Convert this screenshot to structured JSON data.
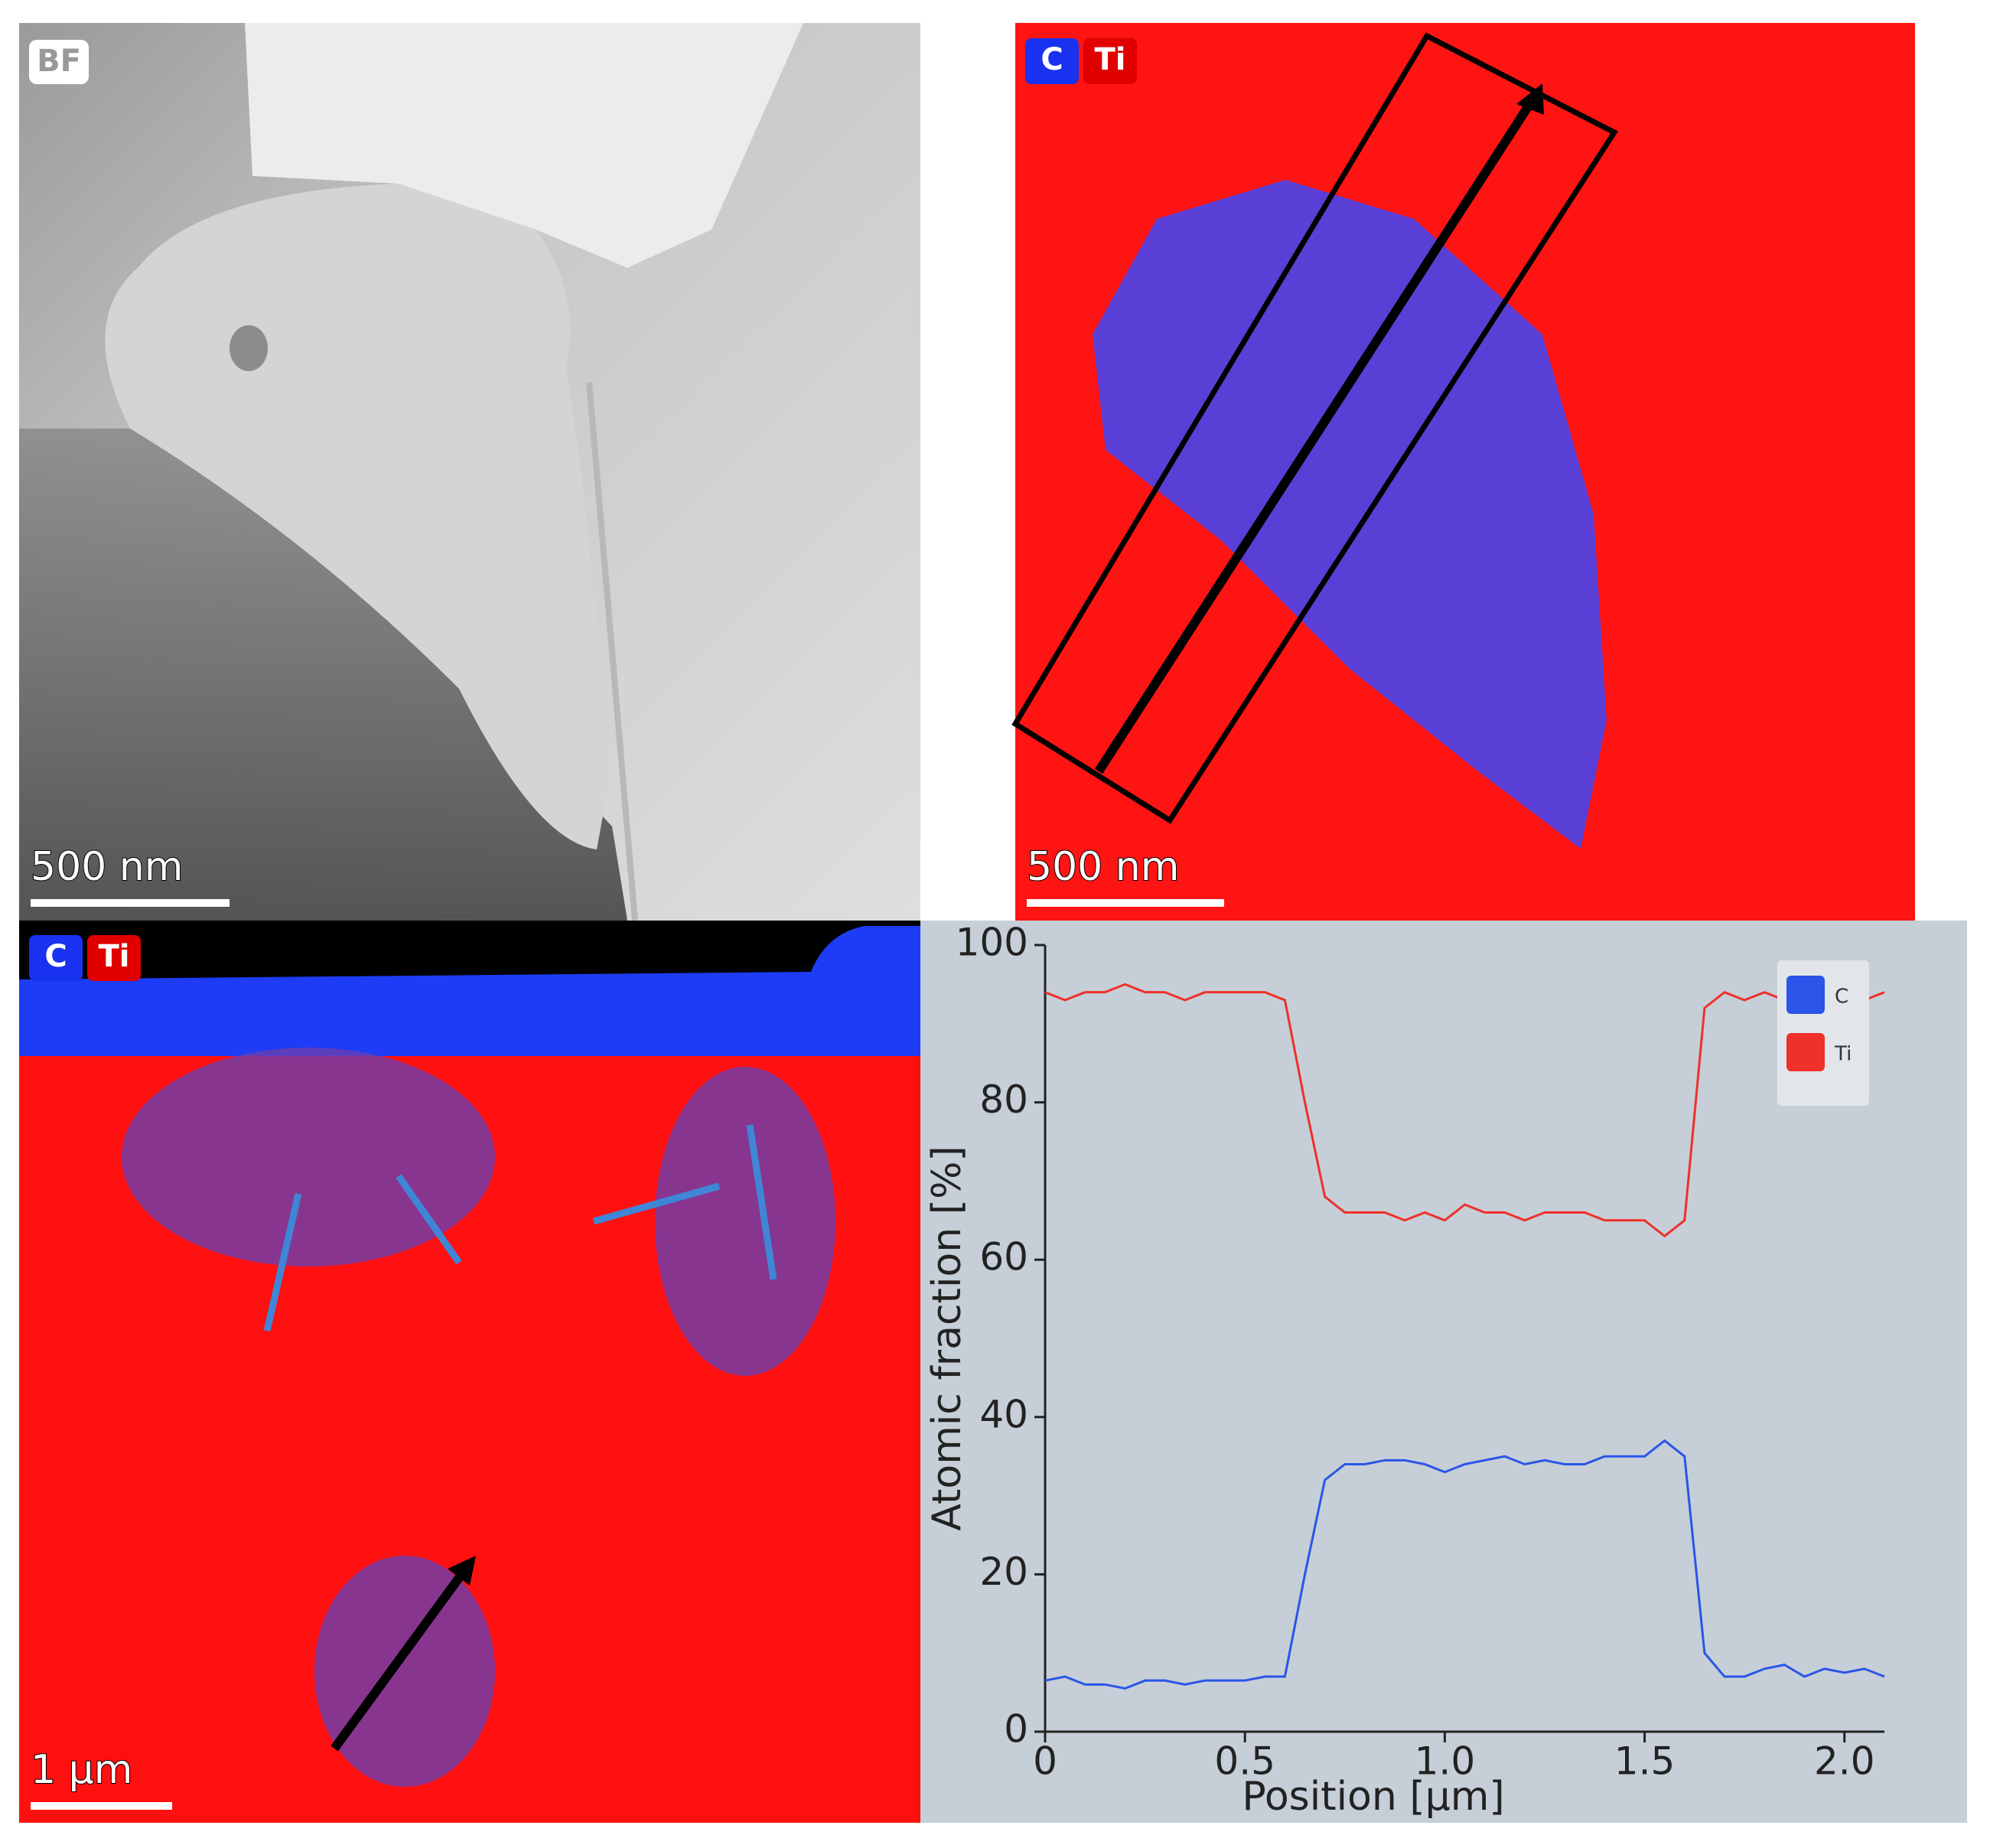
{
  "images": [
    {
      "label": "BF",
      "scale_bar": "500 nm"
    },
    {
      "labels": [
        "C",
        "Ti"
      ],
      "scale_bar": "500 nm"
    },
    {
      "labels": [
        "C",
        "Ti"
      ],
      "scale_bar": "1 µm"
    }
  ],
  "chart_data": {
    "type": "line",
    "xlabel": "Position [µm]",
    "ylabel": "Atomic fraction [%]",
    "x": [
      0,
      0.05,
      0.1,
      0.15,
      0.2,
      0.25,
      0.3,
      0.35,
      0.4,
      0.45,
      0.5,
      0.55,
      0.6,
      0.65,
      0.7,
      0.75,
      0.8,
      0.85,
      0.9,
      0.95,
      1.0,
      1.05,
      1.1,
      1.15,
      1.2,
      1.25,
      1.3,
      1.35,
      1.4,
      1.45,
      1.5,
      1.55,
      1.6,
      1.65,
      1.7,
      1.75,
      1.8,
      1.85,
      1.9,
      1.95,
      2.0,
      2.05,
      2.1
    ],
    "series": [
      {
        "name": "C",
        "color": "#2b55e8",
        "values": [
          6.5,
          7,
          6,
          6,
          5.5,
          6.5,
          6.5,
          6,
          6.5,
          6.5,
          6.5,
          7,
          7,
          20,
          32,
          34,
          34,
          34.5,
          34.5,
          34,
          33,
          34,
          34.5,
          35,
          34,
          34.5,
          34,
          34,
          35,
          35,
          35,
          37,
          35,
          10,
          7,
          7,
          8,
          8.5,
          7,
          8,
          7.5,
          8,
          7
        ]
      },
      {
        "name": "Ti",
        "color": "#f0302a",
        "values": [
          94,
          93,
          94,
          94,
          95,
          94,
          94,
          93,
          94,
          94,
          94,
          94,
          93,
          80,
          68,
          66,
          66,
          66,
          65,
          66,
          65,
          67,
          66,
          66,
          65,
          66,
          66,
          66,
          65,
          65,
          65,
          63,
          65,
          92,
          94,
          93,
          94,
          93,
          93,
          93,
          94,
          93,
          94
        ]
      }
    ],
    "xlim": [
      0,
      2.1
    ],
    "xticks": [
      0,
      0.5,
      {
        "value": 1,
        "label": "1.0"
      },
      1.5,
      {
        "value": 2,
        "label": "2.0"
      }
    ],
    "ylim": [
      0,
      100
    ],
    "yticks": [
      0,
      20,
      40,
      60,
      80,
      100
    ],
    "legend": "upper right"
  }
}
